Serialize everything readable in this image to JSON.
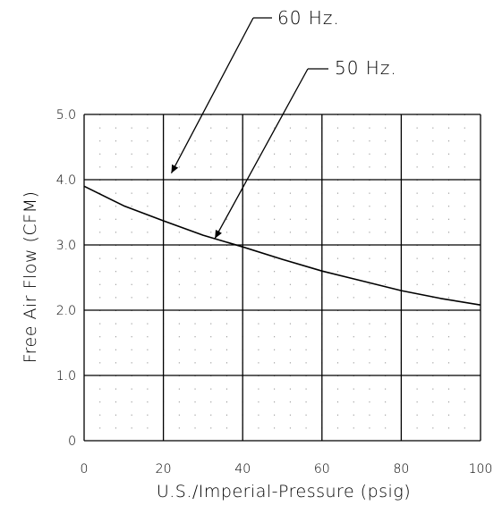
{
  "chart_data": {
    "type": "line",
    "title": "",
    "xlabel": "U.S./Imperial-Pressure (psig)",
    "ylabel": "Free Air Flow (CFM)",
    "xlim": [
      0,
      100
    ],
    "ylim": [
      0,
      5
    ],
    "x_ticks": [
      0,
      20,
      40,
      60,
      80,
      100
    ],
    "x_tick_labels": [
      "0",
      "20",
      "40",
      "60",
      "80",
      "100"
    ],
    "y_ticks": [
      0,
      1,
      2,
      3,
      4,
      5
    ],
    "y_tick_labels": [
      "0",
      "1.0",
      "2.0",
      "3.0",
      "4.0",
      "5.0"
    ],
    "grid": "major lines every 20 psig and 1.0 CFM, dotted minor grid",
    "series": [
      {
        "x": [
          0,
          10,
          20,
          30,
          40,
          50,
          60,
          70,
          80,
          90,
          100
        ],
        "y": [
          3.9,
          3.6,
          3.37,
          3.15,
          2.97,
          2.78,
          2.6,
          2.45,
          2.3,
          2.18,
          2.08
        ]
      }
    ],
    "annotations": [
      {
        "text": "60 Hz.",
        "points_to": {
          "x": 22,
          "y": 4.1
        }
      },
      {
        "text": "50 Hz.",
        "points_to": {
          "x": 33,
          "y": 3.1
        }
      }
    ]
  }
}
